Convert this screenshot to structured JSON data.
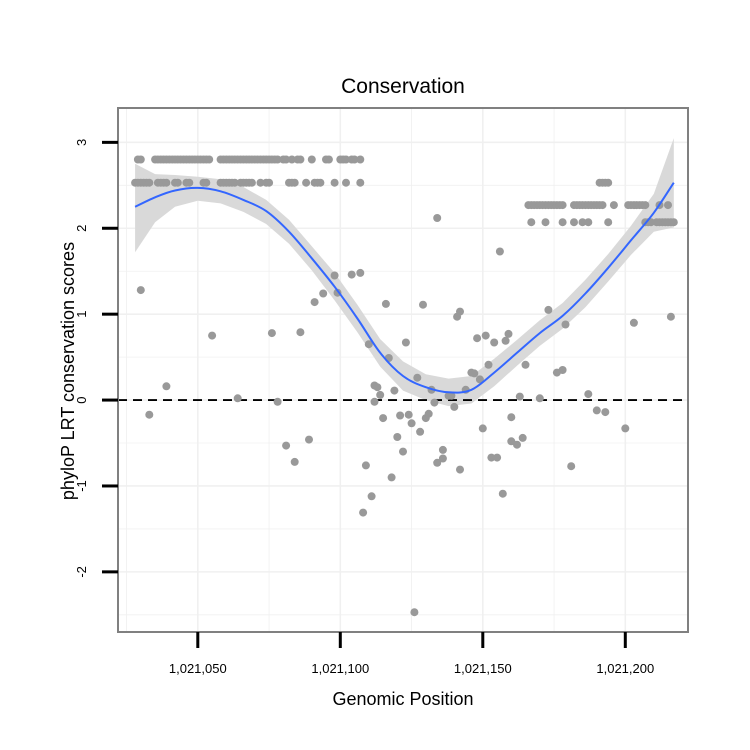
{
  "chart_data": {
    "type": "scatter",
    "title": "Conservation",
    "xlabel": "Genomic Position",
    "ylabel": "phyloP LRT conservation scores",
    "xlim": [
      1021022,
      1021222
    ],
    "ylim": [
      -2.7,
      3.4
    ],
    "x_ticks": [
      1021050,
      1021100,
      1021150,
      1021200
    ],
    "x_tick_labels": [
      "1,021,050",
      "1,021,100",
      "1,021,150",
      "1,021,200"
    ],
    "y_ticks": [
      -2,
      -1,
      0,
      1,
      2,
      3
    ],
    "y_tick_labels": [
      "-2",
      "-1",
      "0",
      "1",
      "2",
      "3"
    ],
    "grid": true,
    "reference_line": {
      "y": 0,
      "style": "dashed"
    },
    "colors": {
      "points": "#999999",
      "smooth_line": "#3366ff",
      "confidence_band": "#d9d9d9",
      "grid": "#f0f0f0",
      "panel_border": "#808080"
    },
    "series": [
      {
        "name": "phyloP scores",
        "points": [
          [
            1021029,
            2.8
          ],
          [
            1021030,
            2.8
          ],
          [
            1021035,
            2.8
          ],
          [
            1021036,
            2.8
          ],
          [
            1021037,
            2.8
          ],
          [
            1021038,
            2.8
          ],
          [
            1021039,
            2.8
          ],
          [
            1021040,
            2.8
          ],
          [
            1021041,
            2.8
          ],
          [
            1021042,
            2.8
          ],
          [
            1021043,
            2.8
          ],
          [
            1021044,
            2.8
          ],
          [
            1021045,
            2.8
          ],
          [
            1021046,
            2.8
          ],
          [
            1021047,
            2.8
          ],
          [
            1021048,
            2.8
          ],
          [
            1021049,
            2.8
          ],
          [
            1021050,
            2.8
          ],
          [
            1021051,
            2.8
          ],
          [
            1021052,
            2.8
          ],
          [
            1021053,
            2.8
          ],
          [
            1021054,
            2.8
          ],
          [
            1021058,
            2.8
          ],
          [
            1021059,
            2.8
          ],
          [
            1021060,
            2.8
          ],
          [
            1021061,
            2.8
          ],
          [
            1021062,
            2.8
          ],
          [
            1021063,
            2.8
          ],
          [
            1021064,
            2.8
          ],
          [
            1021065,
            2.8
          ],
          [
            1021066,
            2.8
          ],
          [
            1021067,
            2.8
          ],
          [
            1021068,
            2.8
          ],
          [
            1021069,
            2.8
          ],
          [
            1021070,
            2.8
          ],
          [
            1021071,
            2.8
          ],
          [
            1021072,
            2.8
          ],
          [
            1021073,
            2.8
          ],
          [
            1021074,
            2.8
          ],
          [
            1021075,
            2.8
          ],
          [
            1021076,
            2.8
          ],
          [
            1021077,
            2.8
          ],
          [
            1021078,
            2.8
          ],
          [
            1021080,
            2.8
          ],
          [
            1021081,
            2.8
          ],
          [
            1021083,
            2.8
          ],
          [
            1021085,
            2.8
          ],
          [
            1021086,
            2.8
          ],
          [
            1021090,
            2.8
          ],
          [
            1021095,
            2.8
          ],
          [
            1021096,
            2.8
          ],
          [
            1021100,
            2.8
          ],
          [
            1021101,
            2.8
          ],
          [
            1021102,
            2.8
          ],
          [
            1021104,
            2.8
          ],
          [
            1021105,
            2.8
          ],
          [
            1021107,
            2.8
          ],
          [
            1021028,
            2.53
          ],
          [
            1021029,
            2.53
          ],
          [
            1021030,
            2.53
          ],
          [
            1021031,
            2.53
          ],
          [
            1021032,
            2.53
          ],
          [
            1021033,
            2.53
          ],
          [
            1021036,
            2.53
          ],
          [
            1021037,
            2.53
          ],
          [
            1021038,
            2.53
          ],
          [
            1021039,
            2.53
          ],
          [
            1021042,
            2.53
          ],
          [
            1021043,
            2.53
          ],
          [
            1021046,
            2.53
          ],
          [
            1021047,
            2.53
          ],
          [
            1021052,
            2.53
          ],
          [
            1021053,
            2.53
          ],
          [
            1021058,
            2.53
          ],
          [
            1021059,
            2.53
          ],
          [
            1021060,
            2.53
          ],
          [
            1021061,
            2.53
          ],
          [
            1021062,
            2.53
          ],
          [
            1021063,
            2.53
          ],
          [
            1021065,
            2.53
          ],
          [
            1021066,
            2.53
          ],
          [
            1021067,
            2.53
          ],
          [
            1021068,
            2.53
          ],
          [
            1021069,
            2.53
          ],
          [
            1021072,
            2.53
          ],
          [
            1021074,
            2.53
          ],
          [
            1021075,
            2.53
          ],
          [
            1021082,
            2.53
          ],
          [
            1021083,
            2.53
          ],
          [
            1021084,
            2.53
          ],
          [
            1021088,
            2.53
          ],
          [
            1021091,
            2.53
          ],
          [
            1021092,
            2.53
          ],
          [
            1021093,
            2.53
          ],
          [
            1021098,
            2.53
          ],
          [
            1021102,
            2.53
          ],
          [
            1021107,
            2.53
          ],
          [
            1021166,
            2.27
          ],
          [
            1021167,
            2.27
          ],
          [
            1021168,
            2.27
          ],
          [
            1021169,
            2.27
          ],
          [
            1021170,
            2.27
          ],
          [
            1021171,
            2.27
          ],
          [
            1021172,
            2.27
          ],
          [
            1021173,
            2.27
          ],
          [
            1021174,
            2.27
          ],
          [
            1021175,
            2.27
          ],
          [
            1021176,
            2.27
          ],
          [
            1021177,
            2.27
          ],
          [
            1021178,
            2.27
          ],
          [
            1021182,
            2.27
          ],
          [
            1021183,
            2.27
          ],
          [
            1021184,
            2.27
          ],
          [
            1021185,
            2.27
          ],
          [
            1021186,
            2.27
          ],
          [
            1021187,
            2.27
          ],
          [
            1021188,
            2.27
          ],
          [
            1021189,
            2.27
          ],
          [
            1021190,
            2.27
          ],
          [
            1021191,
            2.27
          ],
          [
            1021192,
            2.27
          ],
          [
            1021196,
            2.27
          ],
          [
            1021201,
            2.27
          ],
          [
            1021202,
            2.27
          ],
          [
            1021203,
            2.27
          ],
          [
            1021204,
            2.27
          ],
          [
            1021205,
            2.27
          ],
          [
            1021206,
            2.27
          ],
          [
            1021207,
            2.27
          ],
          [
            1021212,
            2.27
          ],
          [
            1021215,
            2.27
          ],
          [
            1021167,
            2.07
          ],
          [
            1021172,
            2.07
          ],
          [
            1021178,
            2.07
          ],
          [
            1021182,
            2.07
          ],
          [
            1021185,
            2.07
          ],
          [
            1021187,
            2.07
          ],
          [
            1021194,
            2.07
          ],
          [
            1021207,
            2.07
          ],
          [
            1021208,
            2.07
          ],
          [
            1021209,
            2.07
          ],
          [
            1021211,
            2.07
          ],
          [
            1021212,
            2.07
          ],
          [
            1021213,
            2.07
          ],
          [
            1021214,
            2.07
          ],
          [
            1021215,
            2.07
          ],
          [
            1021216,
            2.07
          ],
          [
            1021217,
            2.07
          ],
          [
            1021191,
            2.53
          ],
          [
            1021192,
            2.53
          ],
          [
            1021193,
            2.53
          ],
          [
            1021194,
            2.53
          ],
          [
            1021030,
            1.28
          ],
          [
            1021033,
            -0.17
          ],
          [
            1021039,
            0.16
          ],
          [
            1021055,
            0.75
          ],
          [
            1021064,
            0.02
          ],
          [
            1021076,
            0.78
          ],
          [
            1021078,
            -0.02
          ],
          [
            1021081,
            -0.53
          ],
          [
            1021084,
            -0.72
          ],
          [
            1021086,
            0.79
          ],
          [
            1021089,
            -0.46
          ],
          [
            1021091,
            1.14
          ],
          [
            1021094,
            1.24
          ],
          [
            1021098,
            1.45
          ],
          [
            1021099,
            1.25
          ],
          [
            1021104,
            1.46
          ],
          [
            1021107,
            1.48
          ],
          [
            1021108,
            -1.31
          ],
          [
            1021109,
            -0.76
          ],
          [
            1021110,
            0.65
          ],
          [
            1021111,
            -1.12
          ],
          [
            1021112,
            0.17
          ],
          [
            1021112,
            -0.02
          ],
          [
            1021113,
            0.15
          ],
          [
            1021114,
            0.06
          ],
          [
            1021115,
            -0.21
          ],
          [
            1021116,
            1.12
          ],
          [
            1021117,
            0.49
          ],
          [
            1021118,
            -0.9
          ],
          [
            1021119,
            0.11
          ],
          [
            1021120,
            -0.43
          ],
          [
            1021121,
            -0.18
          ],
          [
            1021122,
            -0.6
          ],
          [
            1021123,
            0.67
          ],
          [
            1021124,
            -0.17
          ],
          [
            1021125,
            -0.27
          ],
          [
            1021126,
            -2.47
          ],
          [
            1021127,
            0.26
          ],
          [
            1021128,
            -0.37
          ],
          [
            1021129,
            1.11
          ],
          [
            1021130,
            -0.21
          ],
          [
            1021131,
            -0.16
          ],
          [
            1021132,
            0.12
          ],
          [
            1021133,
            -0.03
          ],
          [
            1021134,
            2.12
          ],
          [
            1021134,
            -0.73
          ],
          [
            1021136,
            -0.58
          ],
          [
            1021136,
            -0.68
          ],
          [
            1021138,
            0.05
          ],
          [
            1021139,
            0.05
          ],
          [
            1021140,
            -0.08
          ],
          [
            1021141,
            0.97
          ],
          [
            1021142,
            1.03
          ],
          [
            1021142,
            -0.81
          ],
          [
            1021144,
            0.12
          ],
          [
            1021146,
            0.32
          ],
          [
            1021147,
            0.31
          ],
          [
            1021148,
            0.72
          ],
          [
            1021149,
            0.24
          ],
          [
            1021150,
            -0.33
          ],
          [
            1021151,
            0.75
          ],
          [
            1021152,
            0.41
          ],
          [
            1021153,
            -0.67
          ],
          [
            1021154,
            0.67
          ],
          [
            1021155,
            -0.67
          ],
          [
            1021156,
            1.73
          ],
          [
            1021157,
            -1.09
          ],
          [
            1021158,
            0.69
          ],
          [
            1021159,
            0.77
          ],
          [
            1021160,
            -0.2
          ],
          [
            1021160,
            -0.48
          ],
          [
            1021162,
            -0.52
          ],
          [
            1021163,
            0.04
          ],
          [
            1021164,
            -0.44
          ],
          [
            1021165,
            0.41
          ],
          [
            1021170,
            0.02
          ],
          [
            1021173,
            1.05
          ],
          [
            1021176,
            0.32
          ],
          [
            1021178,
            0.35
          ],
          [
            1021179,
            0.88
          ],
          [
            1021181,
            -0.77
          ],
          [
            1021187,
            0.07
          ],
          [
            1021190,
            -0.12
          ],
          [
            1021193,
            -0.14
          ],
          [
            1021200,
            -0.33
          ],
          [
            1021203,
            0.9
          ],
          [
            1021216,
            0.97
          ]
        ]
      },
      {
        "name": "loess smooth",
        "x": [
          1021028,
          1021035,
          1021042,
          1021050,
          1021058,
          1021066,
          1021074,
          1021082,
          1021090,
          1021098,
          1021106,
          1021114,
          1021122,
          1021130,
          1021138,
          1021146,
          1021154,
          1021162,
          1021170,
          1021178,
          1021186,
          1021194,
          1021202,
          1021210,
          1021217
        ],
        "y": [
          2.25,
          2.36,
          2.44,
          2.47,
          2.43,
          2.33,
          2.2,
          1.96,
          1.65,
          1.32,
          0.95,
          0.55,
          0.28,
          0.15,
          0.09,
          0.12,
          0.32,
          0.55,
          0.78,
          0.98,
          1.24,
          1.54,
          1.86,
          2.18,
          2.53
        ],
        "upper": [
          2.75,
          2.63,
          2.62,
          2.6,
          2.57,
          2.48,
          2.33,
          2.1,
          1.79,
          1.48,
          1.11,
          0.71,
          0.45,
          0.3,
          0.25,
          0.28,
          0.48,
          0.7,
          0.93,
          1.13,
          1.4,
          1.7,
          2.03,
          2.4,
          3.05
        ],
        "lower": [
          1.72,
          2.07,
          2.25,
          2.32,
          2.29,
          2.19,
          2.05,
          1.82,
          1.51,
          1.16,
          0.79,
          0.39,
          0.11,
          0.0,
          -0.07,
          -0.04,
          0.16,
          0.4,
          0.63,
          0.83,
          1.08,
          1.38,
          1.69,
          1.96,
          2.01
        ]
      }
    ]
  }
}
